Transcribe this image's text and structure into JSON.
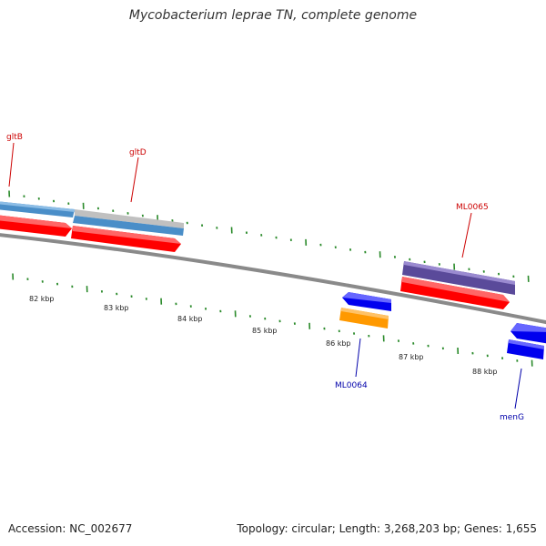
{
  "title": "Mycobacterium leprae TN, complete genome",
  "footer": {
    "accession": "Accession: NC_002677",
    "topology": "Topology: circular; Length: 3,268,203 bp; Genes: 1,655"
  },
  "colors": {
    "forward_gene": "#ff0000",
    "reverse_gene": "#0000ff",
    "orange_gene": "#ff9900",
    "purple_gene": "#5a4a9a",
    "steelblue_gene": "#4a8ec8",
    "gray_gene": "#bbbbbb",
    "tick": "#2a8a2a",
    "label_red": "#cc0000",
    "label_blue": "#0000aa"
  },
  "scale_labels": [
    "82 kbp",
    "83 kbp",
    "84 kbp",
    "85 kbp",
    "86 kbp",
    "87 kbp",
    "88 kbp"
  ],
  "gene_labels": [
    "gltB",
    "gltD",
    "ML0065",
    "ML0064",
    "menG"
  ]
}
